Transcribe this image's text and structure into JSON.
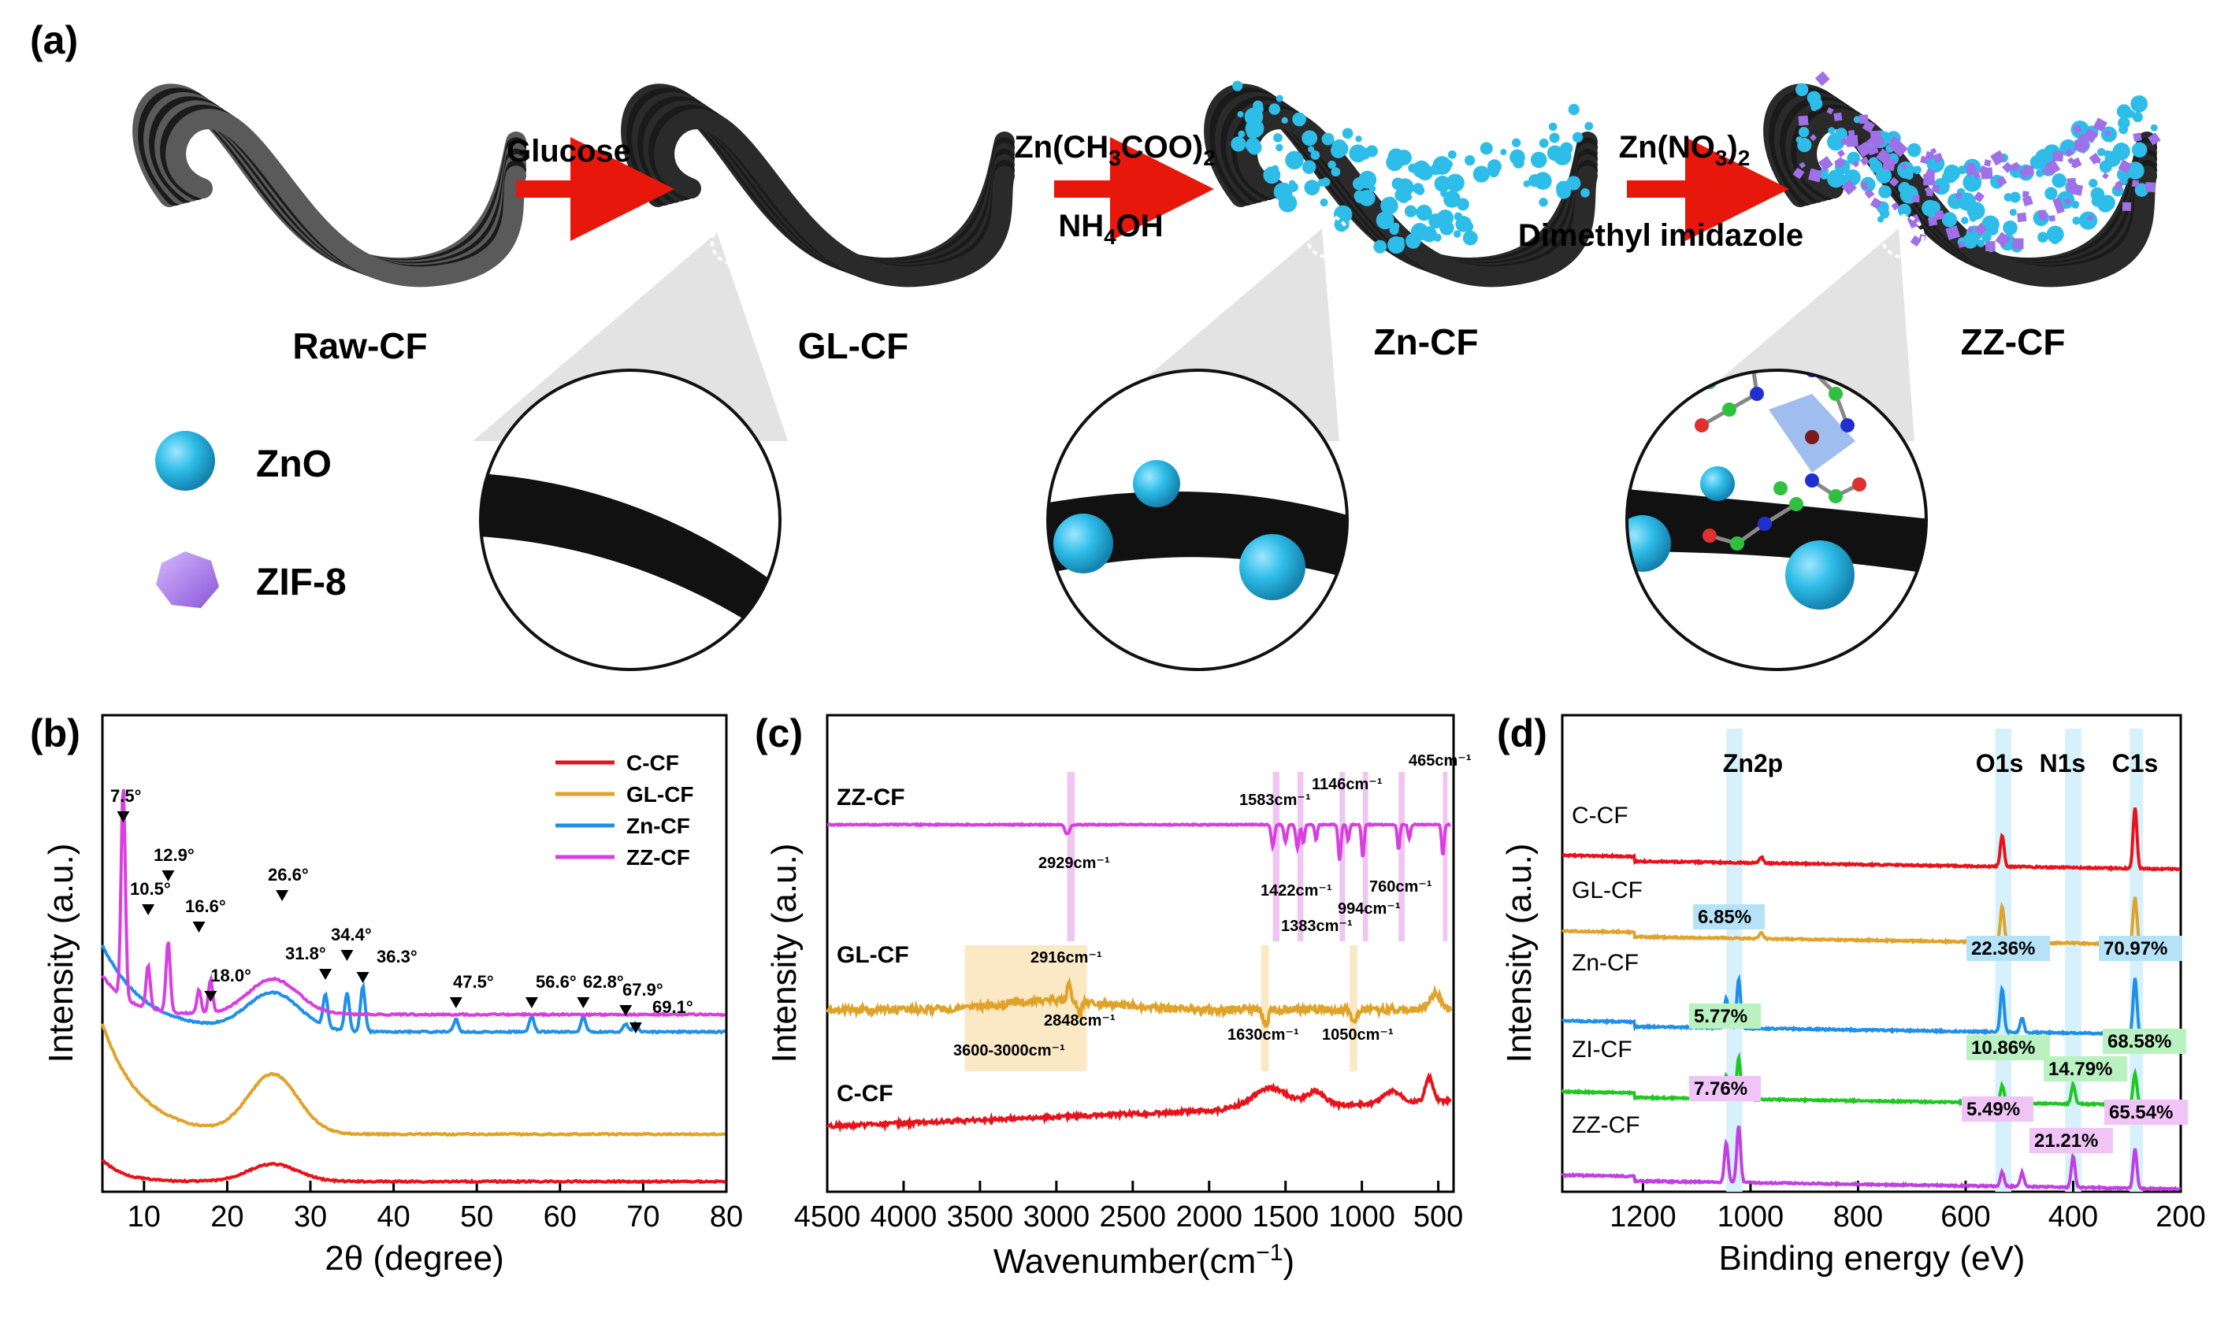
{
  "panel_a": {
    "panel_label": "(a)",
    "stages": [
      "Raw-CF",
      "GL-CF",
      "Zn-CF",
      "ZZ-CF"
    ],
    "reagents": [
      {
        "top": "Glucose",
        "bottom": ""
      },
      {
        "top": "Zn(CH3COO)2",
        "bottom": "NH4OH"
      },
      {
        "top": "Zn(NO3)2",
        "bottom": "Dimethyl imidazole"
      }
    ],
    "legend": [
      "ZnO",
      "ZIF-8"
    ],
    "colors": {
      "fiber": "#2a2a2a",
      "raw_fiber": "#5a5a5a",
      "zno": "#2ebde8",
      "zif8": "#a070e8",
      "arrow": "#e8170c"
    }
  },
  "panel_b": {
    "panel_label": "(b)",
    "chart_data": {
      "type": "line",
      "xlabel": "2θ (degree)",
      "ylabel": "Intensity (a.u.)",
      "xlim": [
        5,
        80
      ],
      "x_ticks": [
        10,
        20,
        30,
        40,
        50,
        60,
        70,
        80
      ],
      "series": [
        {
          "name": "C-CF",
          "color": "#e8131a"
        },
        {
          "name": "GL-CF",
          "color": "#e0a32a"
        },
        {
          "name": "Zn-CF",
          "color": "#1f8fe8"
        },
        {
          "name": "ZZ-CF",
          "color": "#d93ee0"
        }
      ],
      "peak_labels": [
        {
          "x": 7.5,
          "label": "7.5°",
          "series": "ZZ-CF"
        },
        {
          "x": 10.5,
          "label": "10.5°",
          "series": "ZZ-CF"
        },
        {
          "x": 12.9,
          "label": "12.9°",
          "series": "ZZ-CF"
        },
        {
          "x": 16.6,
          "label": "16.6°",
          "series": "ZZ-CF"
        },
        {
          "x": 18.0,
          "label": "18.0°",
          "series": "ZZ-CF"
        },
        {
          "x": 26.6,
          "label": "26.6°",
          "series": "ZZ-CF"
        },
        {
          "x": 31.8,
          "label": "31.8°",
          "series": "Zn-CF"
        },
        {
          "x": 34.4,
          "label": "34.4°",
          "series": "Zn-CF"
        },
        {
          "x": 36.3,
          "label": "36.3°",
          "series": "Zn-CF"
        },
        {
          "x": 47.5,
          "label": "47.5°",
          "series": "Zn-CF"
        },
        {
          "x": 56.6,
          "label": "56.6°",
          "series": "Zn-CF"
        },
        {
          "x": 62.8,
          "label": "62.8°",
          "series": "Zn-CF"
        },
        {
          "x": 67.9,
          "label": "67.9°",
          "series": "Zn-CF"
        },
        {
          "x": 69.1,
          "label": "69.1°",
          "series": "Zn-CF"
        }
      ]
    }
  },
  "panel_c": {
    "panel_label": "(c)",
    "chart_data": {
      "type": "line",
      "xlabel": "Wavenumber(cm-1)",
      "xlabel_base": "Wavenumber(cm",
      "xlabel_sup": "−1",
      "xlabel_close": ")",
      "ylabel": "Intensity (a.u.)",
      "xlim": [
        4500,
        400
      ],
      "x_ticks": [
        4500,
        4000,
        3500,
        3000,
        2500,
        2000,
        1500,
        1000,
        500
      ],
      "series": [
        {
          "name": "ZZ-CF",
          "color": "#d93ee0"
        },
        {
          "name": "GL-CF",
          "color": "#e0a32a"
        },
        {
          "name": "C-CF",
          "color": "#e8131a"
        }
      ],
      "annotations": [
        {
          "text": "465cm⁻¹",
          "x": 465
        },
        {
          "text": "1146cm⁻¹",
          "x": 1146
        },
        {
          "text": "1583cm⁻¹",
          "x": 1583
        },
        {
          "text": "2929cm⁻¹",
          "x": 2929
        },
        {
          "text": "1422cm⁻¹",
          "x": 1422
        },
        {
          "text": "760cm⁻¹",
          "x": 760
        },
        {
          "text": "994cm⁻¹",
          "x": 994
        },
        {
          "text": "1383cm⁻¹",
          "x": 1383
        },
        {
          "text": "2916cm⁻¹",
          "x": 2916
        },
        {
          "text": "2848cm⁻¹",
          "x": 2848
        },
        {
          "text": "3600-3000cm⁻¹",
          "x": 3300
        },
        {
          "text": "1630cm⁻¹",
          "x": 1630
        },
        {
          "text": "1050cm⁻¹",
          "x": 1050
        }
      ]
    }
  },
  "panel_d": {
    "panel_label": "(d)",
    "chart_data": {
      "type": "line",
      "xlabel": "Binding energy (eV)",
      "ylabel": "Intensity (a.u.)",
      "xlim": [
        1350,
        200
      ],
      "x_ticks": [
        1200,
        1000,
        800,
        600,
        400,
        200
      ],
      "regions": [
        "Zn2p",
        "O1s",
        "N1s",
        "C1s"
      ],
      "series": [
        {
          "name": "C-CF",
          "color": "#e8131a"
        },
        {
          "name": "GL-CF",
          "color": "#e0a32a"
        },
        {
          "name": "Zn-CF",
          "color": "#1f8fe8"
        },
        {
          "name": "ZI-CF",
          "color": "#1ec820"
        },
        {
          "name": "ZZ-CF",
          "color": "#c040e0"
        }
      ],
      "percent_labels": [
        {
          "series": "Zn-CF",
          "element": "Zn2p",
          "value": "6.85%"
        },
        {
          "series": "Zn-CF",
          "element": "O1s",
          "value": "22.36%"
        },
        {
          "series": "Zn-CF",
          "element": "C1s",
          "value": "70.97%"
        },
        {
          "series": "ZI-CF",
          "element": "Zn2p",
          "value": "5.77%"
        },
        {
          "series": "ZI-CF",
          "element": "O1s",
          "value": "10.86%"
        },
        {
          "series": "ZI-CF",
          "element": "N1s",
          "value": "14.79%"
        },
        {
          "series": "ZI-CF",
          "element": "C1s",
          "value": "68.58%"
        },
        {
          "series": "ZZ-CF",
          "element": "Zn2p",
          "value": "7.76%"
        },
        {
          "series": "ZZ-CF",
          "element": "O1s",
          "value": "5.49%"
        },
        {
          "series": "ZZ-CF",
          "element": "N1s",
          "value": "21.21%"
        },
        {
          "series": "ZZ-CF",
          "element": "C1s",
          "value": "65.54%"
        }
      ]
    }
  }
}
